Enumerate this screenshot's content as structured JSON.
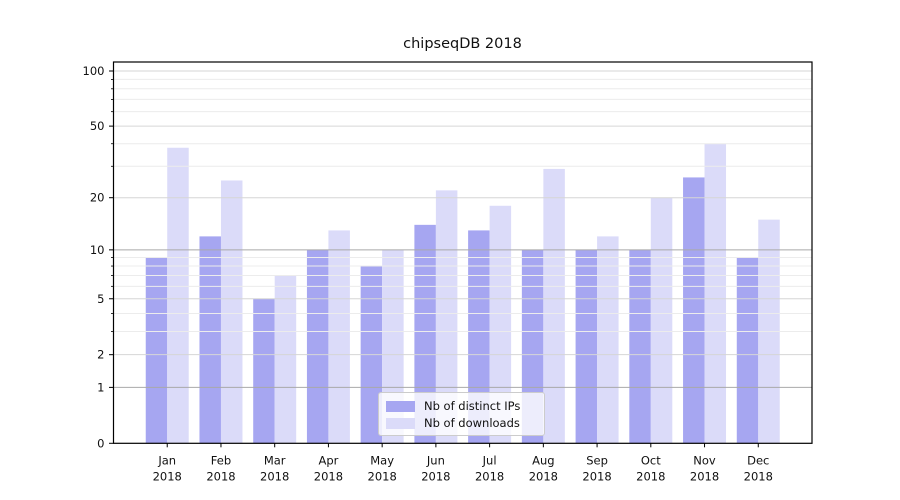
{
  "title": "chipseqDB 2018",
  "chart_data": {
    "type": "bar",
    "title": "chipseqDB 2018",
    "categories": [
      "Jan",
      "Feb",
      "Mar",
      "Apr",
      "May",
      "Jun",
      "Jul",
      "Aug",
      "Sep",
      "Oct",
      "Nov",
      "Dec"
    ],
    "year_label": "2018",
    "series": [
      {
        "name": "Nb of distinct IPs",
        "color": "#a6a6f1",
        "values": [
          9,
          12,
          5,
          10,
          8,
          14,
          13,
          10,
          10,
          10,
          26,
          9
        ]
      },
      {
        "name": "Nb of downloads",
        "color": "#dbdbf9",
        "values": [
          38,
          25,
          7,
          13,
          10,
          22,
          18,
          29,
          12,
          20,
          40,
          15
        ]
      }
    ],
    "y_scale": "log1p",
    "ylim": [
      0,
      112
    ],
    "y_tick_values": [
      0,
      1,
      2,
      5,
      10,
      20,
      50,
      100
    ],
    "y_tick_labels": [
      "0",
      "1",
      "2",
      "5",
      "10",
      "20",
      "50",
      "100"
    ],
    "y_minor_tick_values": [
      3,
      4,
      6,
      7,
      8,
      9,
      30,
      40,
      60,
      70,
      80,
      90
    ],
    "grid": true,
    "grid_above_bars": true,
    "legend_position": "lower center",
    "colors": {
      "decade_gridline": "#a9a9a9",
      "major_gridline": "#d6d6d6",
      "minor_gridline": "#ececec",
      "spine": "#000000",
      "text": "#111111"
    }
  }
}
